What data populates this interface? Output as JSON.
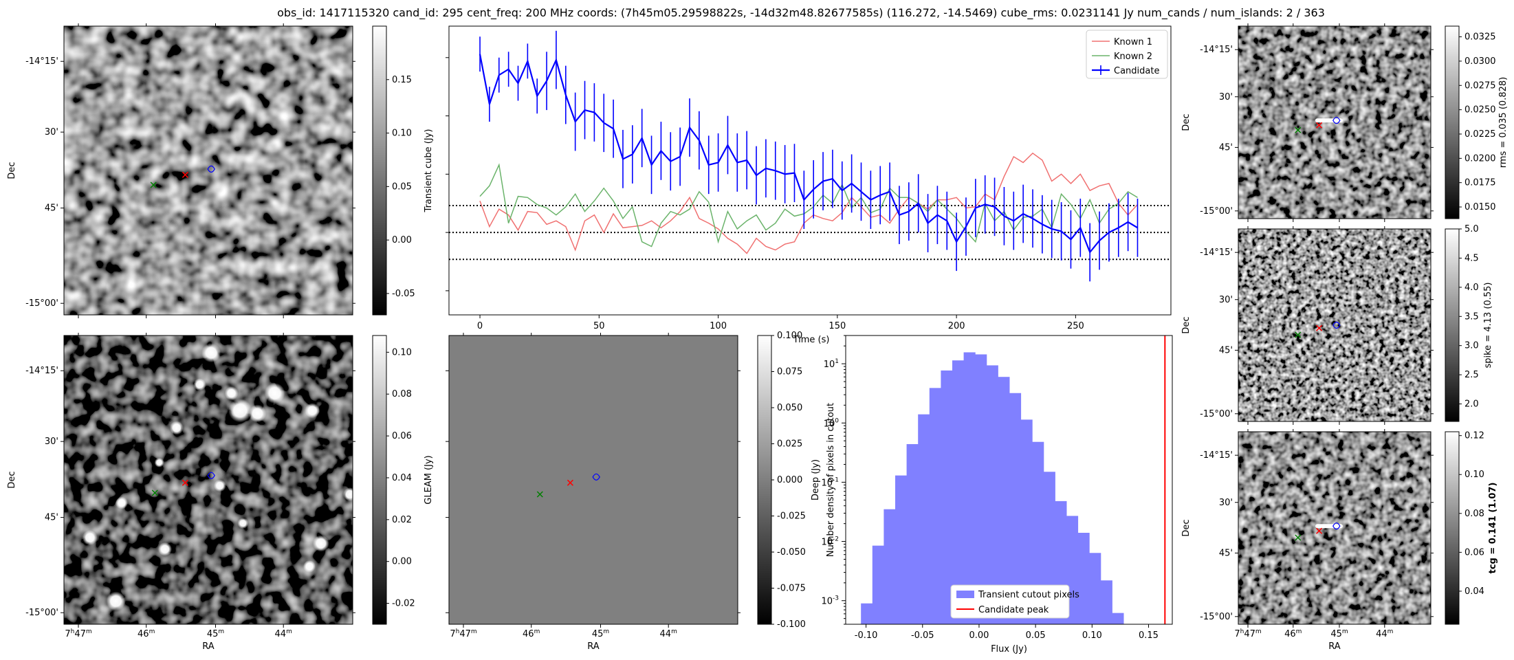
{
  "title": "obs_id: 1417115320 cand_id: 295 cent_freq: 200 MHz coords: (7h45m05.29598822s, -14d32m48.82677585s) (116.272, -14.5469) cube_rms: 0.0231141 Jy num_cands / num_islands: 2 / 363",
  "colors": {
    "known1": "#f07070",
    "known2": "#6ab36a",
    "candidate": "#0000ff",
    "hist_fill": "#8080ff",
    "peak_line": "#ff0000",
    "known1_marker": "#008000",
    "candidate_marker": "#ff0000",
    "island_marker": "#0000ff"
  },
  "image_axes": {
    "ra_label": "RA",
    "dec_label": "Dec",
    "ra_ticks": [
      "7h47m",
      "46m",
      "45m",
      "44m"
    ],
    "dec_ticks": [
      "-14°15'",
      "30'",
      "45'",
      "-15°00'"
    ]
  },
  "panels": {
    "transient": {
      "colorbar_label": "",
      "cb_ticks": [
        "0.15",
        "0.10",
        "0.05",
        "0.00",
        "-0.05"
      ],
      "cb_range": [
        -0.07,
        0.2
      ]
    },
    "deep": {
      "colorbar_label": "Deep (Jy)",
      "cb_ticks": [
        "0.10",
        "0.08",
        "0.06",
        "0.04",
        "0.02",
        "0.00",
        "-0.02"
      ],
      "cb_range": [
        -0.03,
        0.108
      ]
    },
    "gleam": {
      "colorbar_label": "GLEAM (Jy)",
      "cb_ticks": [
        "0.100",
        "0.075",
        "0.050",
        "0.025",
        "0.000",
        "-0.025",
        "-0.050",
        "-0.075",
        "-0.100"
      ],
      "cb_range": [
        -0.1,
        0.1
      ]
    },
    "rms": {
      "colorbar_label": "rms = 0.035 (0.828)",
      "cb_ticks": [
        "0.0325",
        "0.0300",
        "0.0275",
        "0.0250",
        "0.0225",
        "0.0200",
        "0.0175",
        "0.0150"
      ],
      "cb_range": [
        0.0138,
        0.0336
      ]
    },
    "spike": {
      "colorbar_label": "spike = 4.13 (0.55)",
      "cb_ticks": [
        "5.0",
        "4.5",
        "4.0",
        "3.5",
        "3.0",
        "2.5",
        "2.0"
      ],
      "cb_range": [
        1.7,
        5.0
      ]
    },
    "tcg": {
      "colorbar_label": "tcg = 0.141 (1.07)",
      "cb_ticks": [
        "0.12",
        "0.10",
        "0.08",
        "0.06",
        "0.04"
      ],
      "cb_range": [
        0.023,
        0.122
      ]
    }
  },
  "chart_data": [
    {
      "type": "line",
      "xlabel": "Time (s)",
      "ylabel": "Transient cube (Jy)",
      "xlim": [
        -13,
        290
      ],
      "ylim": [
        -0.0707,
        0.177
      ],
      "xticks": [
        0,
        50,
        100,
        150,
        200,
        250
      ],
      "yticks_visible": false,
      "hlines": [
        0.0231,
        0.0,
        -0.0231
      ],
      "legend": [
        "Known 1",
        "Known 2",
        "Candidate"
      ],
      "legend_position": "top-right",
      "x": [
        0,
        4,
        8,
        12,
        16,
        20,
        24,
        28,
        32,
        36,
        40,
        44,
        48,
        52,
        56,
        60,
        64,
        68,
        72,
        76,
        80,
        84,
        88,
        92,
        96,
        100,
        104,
        108,
        112,
        116,
        120,
        124,
        128,
        132,
        136,
        140,
        144,
        148,
        152,
        156,
        160,
        164,
        168,
        172,
        176,
        180,
        184,
        188,
        192,
        196,
        200,
        204,
        208,
        212,
        216,
        220,
        224,
        228,
        232,
        236,
        240,
        244,
        248,
        252,
        256,
        260,
        264,
        268,
        272,
        276
      ],
      "series": [
        {
          "name": "Candidate",
          "values": [
            0.153,
            0.11,
            0.135,
            0.14,
            0.128,
            0.147,
            0.117,
            0.13,
            0.148,
            0.118,
            0.095,
            0.105,
            0.103,
            0.094,
            0.089,
            0.063,
            0.067,
            0.081,
            0.058,
            0.07,
            0.061,
            0.065,
            0.09,
            0.079,
            0.058,
            0.06,
            0.075,
            0.06,
            0.062,
            0.049,
            0.055,
            0.053,
            0.05,
            0.051,
            0.028,
            0.037,
            0.044,
            0.046,
            0.036,
            0.042,
            0.035,
            0.028,
            0.032,
            0.035,
            0.015,
            0.018,
            0.025,
            0.008,
            0.015,
            0.01,
            -0.008,
            0.005,
            0.021,
            0.024,
            0.022,
            0.014,
            0.01,
            0.016,
            0.012,
            0.007,
            0.003,
            0.001,
            -0.006,
            0.004,
            -0.017,
            -0.007,
            0.0,
            0.004,
            0.009,
            0.004
          ],
          "errors": [
            0.015,
            0.015,
            0.015,
            0.015,
            0.015,
            0.015,
            0.015,
            0.025,
            0.025,
            0.025,
            0.025,
            0.025,
            0.025,
            0.025,
            0.025,
            0.025,
            0.025,
            0.025,
            0.025,
            0.025,
            0.025,
            0.025,
            0.025,
            0.025,
            0.025,
            0.025,
            0.025,
            0.025,
            0.025,
            0.025,
            0.025,
            0.025,
            0.025,
            0.025,
            0.025,
            0.025,
            0.025,
            0.025,
            0.025,
            0.025,
            0.025,
            0.025,
            0.025,
            0.025,
            0.025,
            0.025,
            0.025,
            0.025,
            0.025,
            0.025,
            0.025,
            0.025,
            0.025,
            0.025,
            0.025,
            0.025,
            0.025,
            0.025,
            0.025,
            0.025,
            0.025,
            0.025,
            0.025,
            0.025,
            0.025,
            0.025,
            0.025,
            0.025,
            0.025,
            0.025
          ]
        },
        {
          "name": "Known 1",
          "values": [
            0.027,
            0.005,
            0.02,
            0.015,
            0.002,
            0.018,
            0.017,
            0.007,
            0.01,
            0.005,
            -0.015,
            0.01,
            0.015,
            0.0,
            0.016,
            0.004,
            0.005,
            0.006,
            0.01,
            0.004,
            0.01,
            0.018,
            0.03,
            0.012,
            0.008,
            0.003,
            -0.005,
            -0.01,
            -0.018,
            -0.005,
            -0.012,
            -0.015,
            -0.01,
            -0.008,
            0.008,
            0.015,
            0.012,
            0.01,
            0.017,
            0.03,
            0.022,
            0.013,
            0.015,
            0.008,
            0.02,
            0.03,
            0.025,
            0.02,
            0.028,
            0.028,
            0.03,
            0.021,
            0.022,
            0.033,
            0.028,
            0.048,
            0.065,
            0.06,
            0.068,
            0.062,
            0.044,
            0.05,
            0.042,
            0.05,
            0.036,
            0.04,
            0.042,
            0.025,
            0.015,
            0.024
          ]
        },
        {
          "name": "Known 2",
          "values": [
            0.031,
            0.04,
            0.058,
            0.008,
            0.031,
            0.03,
            0.024,
            0.021,
            0.015,
            0.022,
            0.033,
            0.018,
            0.027,
            0.038,
            0.027,
            0.012,
            0.022,
            -0.008,
            -0.012,
            0.008,
            0.018,
            0.015,
            0.02,
            0.035,
            0.026,
            -0.008,
            0.018,
            0.003,
            0.01,
            0.015,
            0.002,
            0.008,
            0.02,
            0.014,
            0.016,
            0.022,
            0.032,
            0.025,
            0.041,
            0.021,
            0.03,
            0.017,
            0.02,
            0.038,
            0.03,
            0.03,
            0.025,
            0.018,
            0.028,
            0.02,
            0.012,
            0.001,
            -0.008,
            0.025,
            0.01,
            0.018,
            0.002,
            0.013,
            0.014,
            0.02,
            0.004,
            0.033,
            0.024,
            0.012,
            0.028,
            0.008,
            0.02,
            0.025,
            0.035,
            0.03
          ]
        }
      ]
    },
    {
      "type": "bar",
      "xlabel": "Flux (Jy)",
      "ylabel": "Number density of pixels in cutout",
      "yscale": "log",
      "xlim": [
        -0.118,
        0.171
      ],
      "ylim": [
        0.0004,
        30
      ],
      "xticks": [
        -0.1,
        -0.05,
        0.0,
        0.05,
        0.1,
        0.15
      ],
      "yticks": [
        "10^1",
        "10^0",
        "10^-1",
        "10^-2",
        "10^-3"
      ],
      "bin_start": -0.1045,
      "bin_width": 0.0101,
      "values": [
        0.0009,
        0.0085,
        0.035,
        0.13,
        0.44,
        1.4,
        3.9,
        7.7,
        11.4,
        15.6,
        14.4,
        9.4,
        6.0,
        3.2,
        1.14,
        0.48,
        0.15,
        0.048,
        0.027,
        0.014,
        0.0064,
        0.0022,
        0.00062
      ],
      "vline": 0.1645,
      "legend": [
        "Transient cutout pixels",
        "Candidate peak"
      ],
      "legend_position": "bottom-center"
    }
  ]
}
